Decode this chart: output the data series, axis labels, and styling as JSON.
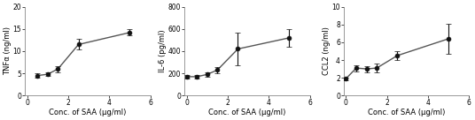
{
  "plots": [
    {
      "ylabel": "TNFα (ng/ml)",
      "xlabel": "Conc. of SAA (μg/ml)",
      "x": [
        0.5,
        1.0,
        1.5,
        2.5,
        5.0
      ],
      "y": [
        4.5,
        4.8,
        6.0,
        11.5,
        14.2
      ],
      "yerr": [
        0.5,
        0.4,
        0.7,
        1.2,
        0.7
      ],
      "ylim": [
        0,
        20
      ],
      "yticks": [
        0,
        5,
        10,
        15,
        20
      ],
      "xlim": [
        -0.1,
        6
      ],
      "xticks": [
        0,
        2,
        4,
        6
      ]
    },
    {
      "ylabel": "IL-6 (pg/ml)",
      "xlabel": "Conc. of SAA (μg/ml)",
      "x": [
        0.0,
        0.5,
        1.0,
        1.5,
        2.5,
        5.0
      ],
      "y": [
        170,
        170,
        190,
        230,
        420,
        520
      ],
      "yerr": [
        15,
        15,
        20,
        30,
        150,
        80
      ],
      "ylim": [
        0,
        800
      ],
      "yticks": [
        0,
        200,
        400,
        600,
        800
      ],
      "xlim": [
        -0.1,
        6
      ],
      "xticks": [
        0,
        2,
        4,
        6
      ]
    },
    {
      "ylabel": "CCL2 (ng/ml)",
      "xlabel": "Conc. of SAA (μg/ml)",
      "x": [
        0.0,
        0.5,
        1.0,
        1.5,
        2.5,
        5.0
      ],
      "y": [
        1.9,
        3.1,
        3.0,
        3.1,
        4.5,
        6.4
      ],
      "yerr": [
        0.15,
        0.35,
        0.35,
        0.5,
        0.45,
        1.7
      ],
      "ylim": [
        0,
        10
      ],
      "yticks": [
        0,
        2,
        4,
        6,
        8,
        10
      ],
      "xlim": [
        -0.1,
        6
      ],
      "xticks": [
        0,
        2,
        4,
        6
      ]
    }
  ],
  "line_color": "#555555",
  "marker_color": "#111111",
  "marker": "o",
  "markersize": 3.5,
  "linewidth": 1.0,
  "capsize": 2,
  "elinewidth": 0.8,
  "label_font_size": 6.0,
  "tick_font_size": 5.5,
  "background_color": "#ffffff"
}
